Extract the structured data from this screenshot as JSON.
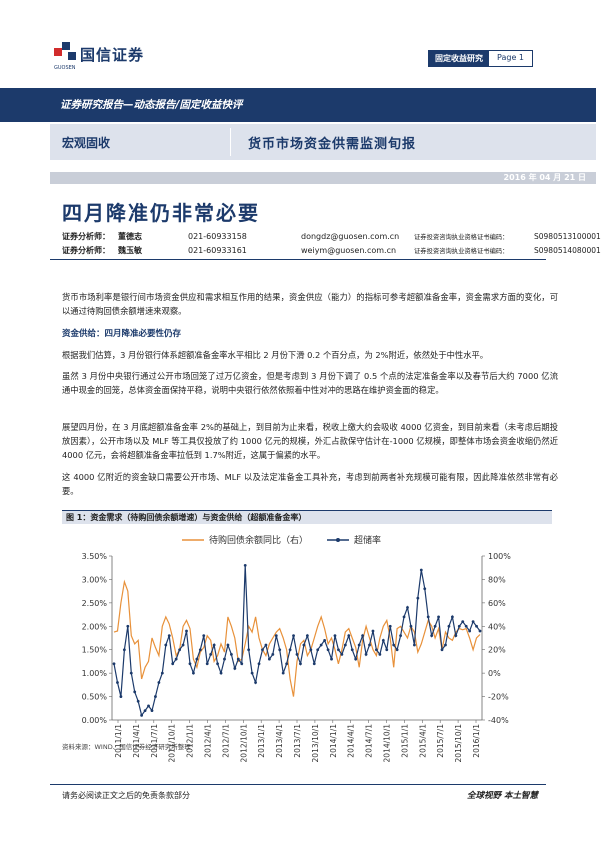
{
  "header": {
    "logo_text": "国信证券",
    "logo_sub": "GUOSEN",
    "report_type": "固定收益研究",
    "page_label": "Page 1"
  },
  "band1_text": "证券研究报告—动态报告/固定收益快评",
  "band2": {
    "left": "宏观固收",
    "right": "货币市场资金供需监测旬报"
  },
  "date": "2016 年 04 月 21 日",
  "title": "四月降准仍非常必要",
  "analysts": [
    {
      "label": "证券分析师：",
      "name": "董德志",
      "phone": "021-60933158",
      "email": "dongdz@guosen.com.cn",
      "cert_label": "证券投资咨询执业资格证书编码：",
      "cert_no": "S0980513100001"
    },
    {
      "label": "证券分析师：",
      "name": "魏玉敏",
      "phone": "021-60933161",
      "email": "weiym@guosen.com.cn",
      "cert_label": "证券投资咨询执业资格证书编码：",
      "cert_no": "S0980514080001"
    }
  ],
  "intro": "货币市场利率是银行间市场资金供应和需求相互作用的结果，资金供应（能力）的指标可参考超额准备金率，资金需求方面的变化，可以通过待购回债余额增速来观察。",
  "section1": "资金供给：四月降准必要性仍存",
  "p1": "根据我们估算，3 月份银行体系超额准备金率水平相比 2 月份下滑 0.2 个百分点，为 2%附近，依然处于中性水平。",
  "p2": "虽然 3 月份中央银行通过公开市场回笼了过万亿资金，但是考虑到 3 月份下调了 0.5 个点的法定准备金率以及春节后大约 7000 亿流通中现金的回笼，总体资金面保持平稳，说明中央银行依然依照着中性对冲的思路在维护资金面的稳定。",
  "p3": "展望四月份，在 3 月底超额准备金率 2%的基础上，到目前为止来看，税收上缴大约会吸收 4000 亿资金，到目前来看（未考虑后期投放因素），公开市场以及 MLF 等工具仅投放了约 1000 亿元的规模，外汇占款保守估计在-1000 亿规模，即整体市场会资金收缩仍然近 4000 亿元，会将超额准备金率拉低到 1.7%附近，这属于偏紧的水平。",
  "p4": "这 4000 亿附近的资金缺口需要公开市场、MLF 以及法定准备金工具补充，考虑到前两者补充规模可能有限，因此降准依然非常有必要。",
  "figure_title": "图 1：资金需求（待购回债余额增速）与资金供给（超额准备金率）",
  "source": "资料来源：WIND、国信证券经济研究所整理",
  "footer_left": "请务必阅读正文之后的免责条款部分",
  "footer_right": "全球视野  本土智慧",
  "chart_data": {
    "type": "line",
    "legend_placement": "top",
    "series": [
      {
        "name": "待购回债余额同比（右）",
        "axis": "right",
        "color": "#e8913a",
        "values": [
          35,
          36,
          60,
          78,
          70,
          32,
          25,
          28,
          -5,
          5,
          10,
          30,
          22,
          15,
          40,
          48,
          42,
          30,
          15,
          20,
          40,
          45,
          38,
          12,
          5,
          18,
          22,
          32,
          28,
          10,
          15,
          25,
          18,
          48,
          40,
          30,
          10,
          12,
          25,
          40,
          35,
          48,
          30,
          20,
          15,
          25,
          30,
          35,
          38,
          30,
          20,
          -5,
          -20,
          10,
          25,
          28,
          15,
          20,
          30,
          40,
          48,
          38,
          25,
          30,
          20,
          8,
          20,
          35,
          38,
          30,
          22,
          5,
          28,
          40,
          30,
          20,
          15,
          30,
          40,
          45,
          30,
          5,
          38,
          40,
          35,
          30,
          40,
          35,
          18,
          25,
          35,
          45,
          40,
          30,
          38,
          20,
          35,
          30,
          28,
          35,
          38,
          37,
          38,
          30,
          20,
          30,
          33
        ]
      },
      {
        "name": "超储率",
        "axis": "left",
        "color": "#1c3a6b",
        "values": [
          1.2,
          0.8,
          0.5,
          1.5,
          2.0,
          1.0,
          0.6,
          0.4,
          0.1,
          0.2,
          0.3,
          0.2,
          0.5,
          0.8,
          1.0,
          1.6,
          1.8,
          1.2,
          1.3,
          1.5,
          1.6,
          1.9,
          1.2,
          1.0,
          1.3,
          1.5,
          1.8,
          1.2,
          1.4,
          1.6,
          1.2,
          1.0,
          1.3,
          1.6,
          1.4,
          1.1,
          1.3,
          1.2,
          3.3,
          1.5,
          1.0,
          0.8,
          1.2,
          1.5,
          1.6,
          1.3,
          1.4,
          1.8,
          1.5,
          1.0,
          1.2,
          1.5,
          1.8,
          1.4,
          1.2,
          1.6,
          1.8,
          1.5,
          1.2,
          1.5,
          1.6,
          1.7,
          1.5,
          1.3,
          1.8,
          1.5,
          1.4,
          1.6,
          1.8,
          1.5,
          1.3,
          1.6,
          1.8,
          1.4,
          1.6,
          1.9,
          1.5,
          1.4,
          1.7,
          1.5,
          2.0,
          1.6,
          1.5,
          1.8,
          2.2,
          2.4,
          2.0,
          1.6,
          2.6,
          3.2,
          2.8,
          2.2,
          1.8,
          2.0,
          2.2,
          1.5,
          1.6,
          2.0,
          2.2,
          1.8,
          2.0,
          2.1,
          2.0,
          1.9,
          2.1,
          2.0,
          1.9
        ]
      }
    ],
    "x_ticks": [
      "2011/1/1",
      "2011/4/1",
      "2011/7/1",
      "2011/10/1",
      "2012/1/1",
      "2012/4/1",
      "2012/7/1",
      "2012/10/1",
      "2013/1/1",
      "2013/4/1",
      "2013/7/1",
      "2013/10/1",
      "2014/1/1",
      "2014/4/1",
      "2014/7/1",
      "2014/10/1",
      "2015/1/1",
      "2015/4/1",
      "2015/7/1",
      "2015/10/1",
      "2016/1/1"
    ],
    "y_left_ticks": [
      "0.00%",
      "0.50%",
      "1.00%",
      "1.50%",
      "2.00%",
      "2.50%",
      "3.00%",
      "3.50%"
    ],
    "y_left_range": [
      0,
      3.5
    ],
    "y_right_ticks": [
      "-40%",
      "-20%",
      "0%",
      "20%",
      "40%",
      "60%",
      "80%",
      "100%"
    ],
    "y_right_range": [
      -40,
      100
    ],
    "grid": false
  }
}
